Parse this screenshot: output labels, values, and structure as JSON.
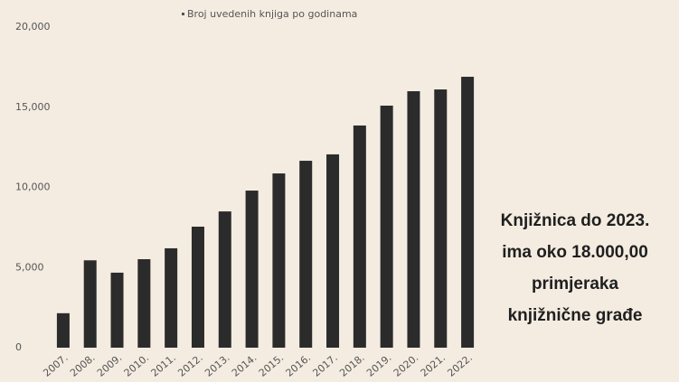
{
  "chart_data": {
    "type": "bar",
    "legend": "Broj uvedenih knjiga po godinama",
    "categories": [
      "2007.",
      "2008.",
      "2009.",
      "2010.",
      "2011.",
      "2012.",
      "2013.",
      "2014.",
      "2015.",
      "2016.",
      "2017.",
      "2018.",
      "2019.",
      "2020.",
      "2021.",
      "2022."
    ],
    "values": [
      2150,
      5450,
      4680,
      5520,
      6200,
      7550,
      8500,
      9800,
      10870,
      11660,
      12060,
      13860,
      15100,
      16000,
      16110,
      16900
    ],
    "color": "#2b2b2b",
    "ylim": [
      0,
      20000
    ],
    "yticks": [
      0,
      {
        "value": 5000,
        "label": "5,000"
      },
      {
        "value": 10000,
        "label": "10,000"
      },
      {
        "value": 15000,
        "label": "15,000"
      },
      {
        "value": 20000,
        "label": "20,000"
      }
    ],
    "grid": false,
    "annotation": [
      "Knjižnica do 2023.",
      "ima oko 18.000,00",
      "primjeraka",
      "knjižnične građe"
    ]
  }
}
